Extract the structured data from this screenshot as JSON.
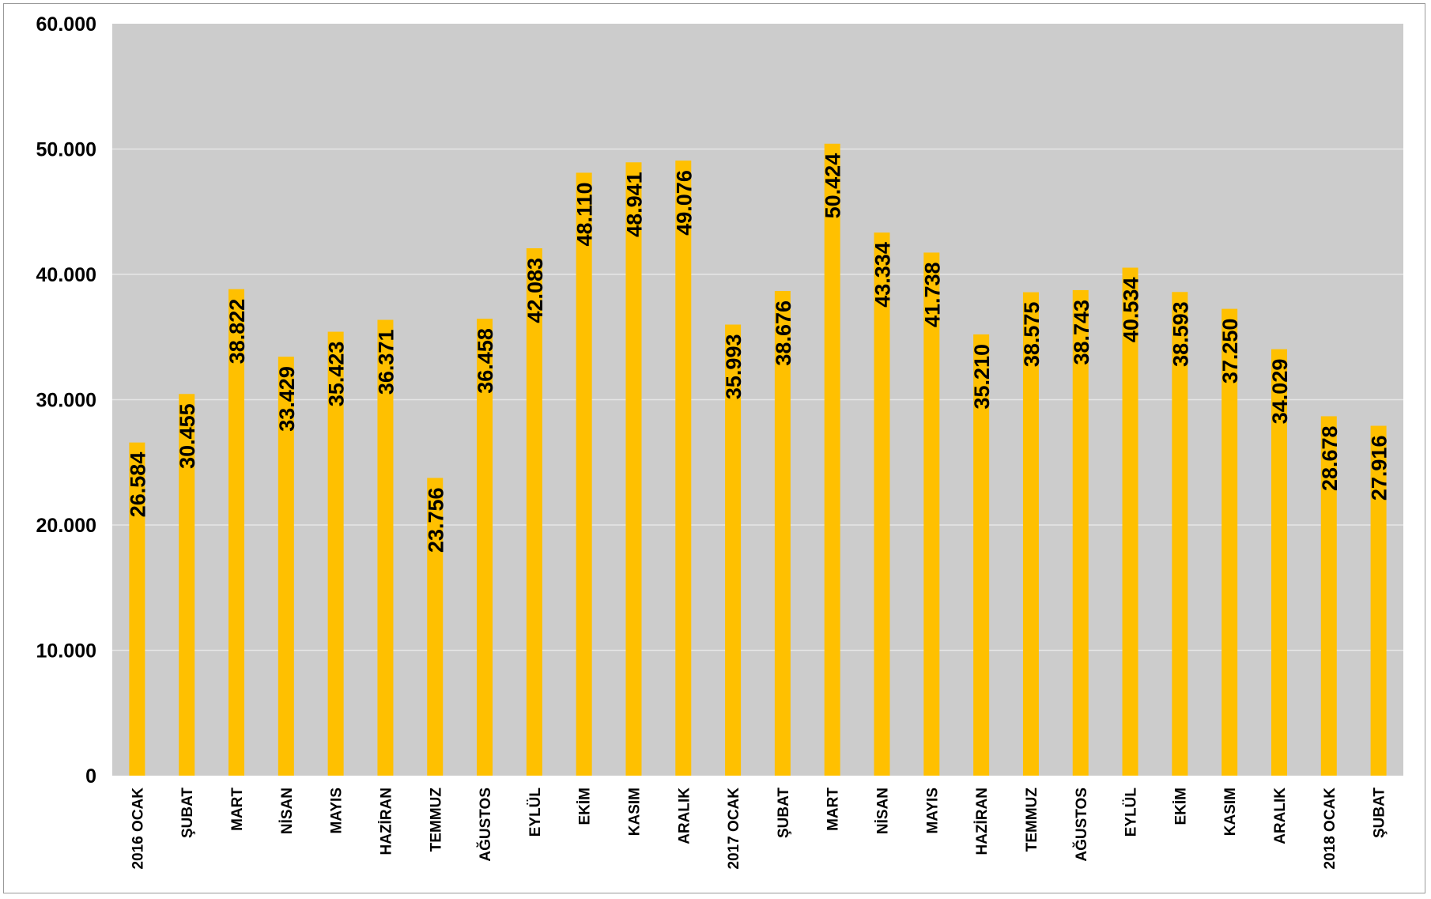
{
  "colors": {
    "plot_background": "#cccccc",
    "gridline": "#e6e6e6",
    "bar": "#ffc000",
    "text": "#000000",
    "frame_border": "#9a9a9a"
  },
  "chart_data": {
    "type": "bar",
    "title": "",
    "xlabel": "",
    "ylabel": "",
    "ylim": [
      0,
      60000
    ],
    "y_ticks": [
      0,
      10000,
      20000,
      30000,
      40000,
      50000,
      60000
    ],
    "y_tick_labels": [
      "0",
      "10.000",
      "20.000",
      "30.000",
      "40.000",
      "50.000",
      "60.000"
    ],
    "grid": true,
    "legend": "none",
    "categories": [
      "2016 OCAK",
      "ŞUBAT",
      "MART",
      "NİSAN",
      "MAYIS",
      "HAZİRAN",
      "TEMMUZ",
      "AĞUSTOS",
      "EYLÜL",
      "EKİM",
      "KASIM",
      "ARALIK",
      "2017 OCAK",
      "ŞUBAT",
      "MART",
      "NİSAN",
      "MAYIS",
      "HAZİRAN",
      "TEMMUZ",
      "AĞUSTOS",
      "EYLÜL",
      "EKİM",
      "KASIM",
      "ARALIK",
      "2018 OCAK",
      "ŞUBAT"
    ],
    "values": [
      26584,
      30455,
      38822,
      33429,
      35423,
      36371,
      23756,
      36458,
      42083,
      48110,
      48941,
      49076,
      35993,
      38676,
      50424,
      43334,
      41738,
      35210,
      38575,
      38743,
      40534,
      38593,
      37250,
      34029,
      28678,
      27916
    ],
    "data_labels": [
      "26.584",
      "30.455",
      "38.822",
      "33.429",
      "35.423",
      "36.371",
      "23.756",
      "36.458",
      "42.083",
      "48.110",
      "48.941",
      "49.076",
      "35.993",
      "38.676",
      "50.424",
      "43.334",
      "41.738",
      "35.210",
      "38.575",
      "38.743",
      "40.534",
      "38.593",
      "37.250",
      "34.029",
      "28.678",
      "27.916"
    ]
  }
}
